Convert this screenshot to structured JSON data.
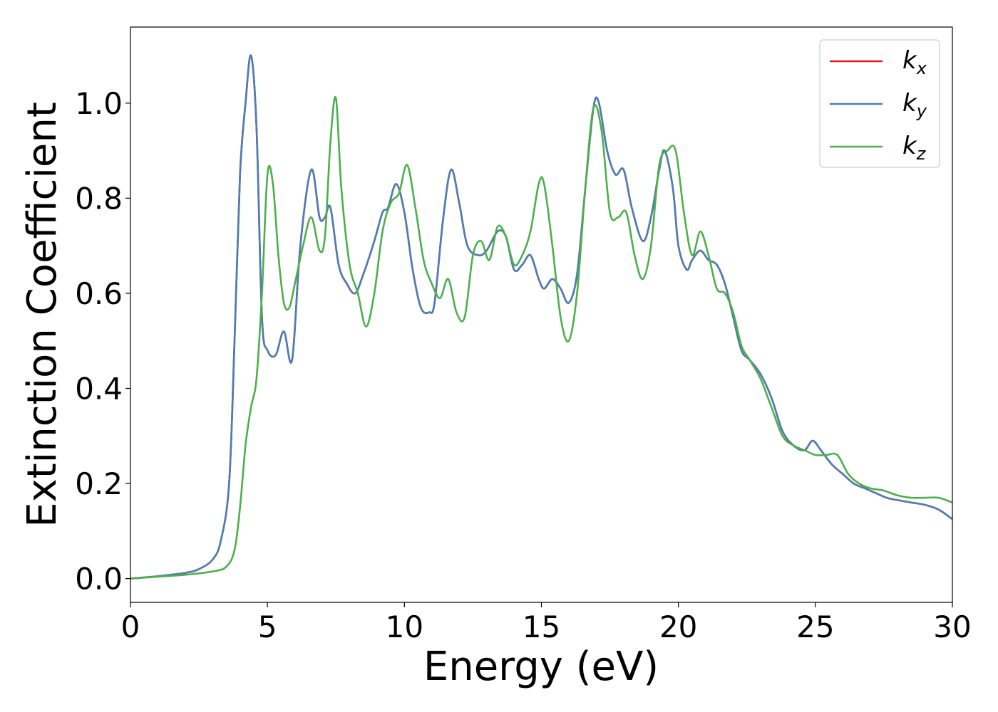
{
  "chart_data": {
    "type": "line",
    "title": "",
    "xlabel": "Energy (eV)",
    "ylabel": "Extinction Coefficient",
    "xlim": [
      0,
      30
    ],
    "ylim": [
      -0.05,
      1.16
    ],
    "x_ticks": [
      0,
      5,
      10,
      15,
      20,
      25,
      30
    ],
    "x_tick_labels": [
      "0",
      "5",
      "10",
      "15",
      "20",
      "25",
      "30"
    ],
    "y_ticks": [
      0.0,
      0.2,
      0.4,
      0.6,
      0.8,
      1.0
    ],
    "y_tick_labels": [
      "0.0",
      "0.2",
      "0.4",
      "0.6",
      "0.8",
      "1.0"
    ],
    "grid": false,
    "legend_position": "top-right",
    "series": [
      {
        "name": "k",
        "name_sub": "x",
        "color": "#e41a1c",
        "x": [
          0,
          1,
          2,
          2.5,
          3,
          3.3,
          3.6,
          3.8,
          4.0,
          4.2,
          4.4,
          4.6,
          4.8,
          5.0,
          5.3,
          5.6,
          5.9,
          6.2,
          6.6,
          6.9,
          7.1,
          7.3,
          7.6,
          7.9,
          8.2,
          8.5,
          8.9,
          9.2,
          9.4,
          9.7,
          10.0,
          10.3,
          10.6,
          10.9,
          11.1,
          11.4,
          11.7,
          12.0,
          12.3,
          12.7,
          13.0,
          13.4,
          13.7,
          14.0,
          14.3,
          14.6,
          14.9,
          15.1,
          15.4,
          15.7,
          16.0,
          16.3,
          16.6,
          16.9,
          17.1,
          17.4,
          17.7,
          18.0,
          18.3,
          18.7,
          19.0,
          19.3,
          19.5,
          19.8,
          20.0,
          20.3,
          20.5,
          20.8,
          21.1,
          21.4,
          21.7,
          22.0,
          22.3,
          22.6,
          23.0,
          23.4,
          23.8,
          24.2,
          24.6,
          24.9,
          25.2,
          25.6,
          26.0,
          26.4,
          26.8,
          27.2,
          27.6,
          28.0,
          28.5,
          29.0,
          29.5,
          30.0
        ],
        "y": [
          0.0,
          0.005,
          0.012,
          0.02,
          0.04,
          0.08,
          0.2,
          0.5,
          0.85,
          1.0,
          1.1,
          0.95,
          0.55,
          0.48,
          0.47,
          0.52,
          0.46,
          0.7,
          0.86,
          0.76,
          0.76,
          0.78,
          0.66,
          0.62,
          0.6,
          0.64,
          0.71,
          0.77,
          0.78,
          0.83,
          0.77,
          0.65,
          0.57,
          0.56,
          0.58,
          0.75,
          0.86,
          0.79,
          0.7,
          0.68,
          0.69,
          0.73,
          0.72,
          0.65,
          0.66,
          0.68,
          0.63,
          0.61,
          0.63,
          0.61,
          0.58,
          0.64,
          0.82,
          0.99,
          1.0,
          0.9,
          0.85,
          0.86,
          0.78,
          0.71,
          0.76,
          0.86,
          0.9,
          0.82,
          0.7,
          0.65,
          0.67,
          0.69,
          0.67,
          0.66,
          0.62,
          0.55,
          0.48,
          0.46,
          0.43,
          0.38,
          0.31,
          0.28,
          0.27,
          0.29,
          0.27,
          0.24,
          0.22,
          0.2,
          0.19,
          0.18,
          0.17,
          0.165,
          0.16,
          0.155,
          0.145,
          0.125
        ]
      },
      {
        "name": "k",
        "name_sub": "y",
        "color": "#4a7fb5",
        "x": [
          0,
          1,
          2,
          2.5,
          3,
          3.3,
          3.6,
          3.8,
          4.0,
          4.2,
          4.4,
          4.6,
          4.8,
          5.0,
          5.3,
          5.6,
          5.9,
          6.2,
          6.6,
          6.9,
          7.1,
          7.3,
          7.6,
          7.9,
          8.2,
          8.5,
          8.9,
          9.2,
          9.4,
          9.7,
          10.0,
          10.3,
          10.6,
          10.9,
          11.1,
          11.4,
          11.7,
          12.0,
          12.3,
          12.7,
          13.0,
          13.4,
          13.7,
          14.0,
          14.3,
          14.6,
          14.9,
          15.1,
          15.4,
          15.7,
          16.0,
          16.3,
          16.6,
          16.9,
          17.1,
          17.4,
          17.7,
          18.0,
          18.3,
          18.7,
          19.0,
          19.3,
          19.5,
          19.8,
          20.0,
          20.3,
          20.5,
          20.8,
          21.1,
          21.4,
          21.7,
          22.0,
          22.3,
          22.6,
          23.0,
          23.4,
          23.8,
          24.2,
          24.6,
          24.9,
          25.2,
          25.6,
          26.0,
          26.4,
          26.8,
          27.2,
          27.6,
          28.0,
          28.5,
          29.0,
          29.5,
          30.0
        ],
        "y": [
          0.0,
          0.005,
          0.012,
          0.02,
          0.04,
          0.08,
          0.2,
          0.5,
          0.85,
          1.0,
          1.1,
          0.95,
          0.55,
          0.48,
          0.47,
          0.52,
          0.46,
          0.7,
          0.86,
          0.76,
          0.76,
          0.78,
          0.66,
          0.62,
          0.6,
          0.64,
          0.71,
          0.77,
          0.78,
          0.83,
          0.77,
          0.65,
          0.57,
          0.56,
          0.58,
          0.75,
          0.86,
          0.79,
          0.7,
          0.68,
          0.69,
          0.73,
          0.72,
          0.65,
          0.66,
          0.68,
          0.63,
          0.61,
          0.63,
          0.61,
          0.58,
          0.64,
          0.82,
          0.99,
          1.0,
          0.9,
          0.85,
          0.86,
          0.78,
          0.71,
          0.76,
          0.86,
          0.9,
          0.82,
          0.7,
          0.65,
          0.67,
          0.69,
          0.67,
          0.66,
          0.62,
          0.55,
          0.48,
          0.46,
          0.43,
          0.38,
          0.31,
          0.28,
          0.27,
          0.29,
          0.27,
          0.24,
          0.22,
          0.2,
          0.19,
          0.18,
          0.17,
          0.165,
          0.16,
          0.155,
          0.145,
          0.125
        ]
      },
      {
        "name": "k",
        "name_sub": "z",
        "color": "#4daf4a",
        "x": [
          0,
          1,
          2,
          3,
          3.5,
          3.8,
          4.0,
          4.2,
          4.4,
          4.6,
          4.8,
          5.0,
          5.2,
          5.4,
          5.6,
          5.8,
          6.0,
          6.3,
          6.6,
          6.9,
          7.1,
          7.3,
          7.5,
          7.7,
          8.0,
          8.3,
          8.6,
          8.9,
          9.2,
          9.5,
          9.8,
          10.1,
          10.4,
          10.7,
          11.0,
          11.3,
          11.6,
          11.9,
          12.2,
          12.5,
          12.8,
          13.1,
          13.4,
          13.7,
          14.0,
          14.3,
          14.6,
          14.9,
          15.1,
          15.4,
          15.7,
          16.0,
          16.3,
          16.6,
          16.9,
          17.2,
          17.5,
          17.8,
          18.1,
          18.4,
          18.7,
          19.0,
          19.3,
          19.6,
          19.9,
          20.2,
          20.5,
          20.8,
          21.1,
          21.4,
          21.7,
          22.0,
          22.3,
          22.6,
          23.0,
          23.4,
          23.8,
          24.2,
          24.6,
          25.0,
          25.4,
          25.8,
          26.2,
          26.6,
          27.0,
          27.5,
          28.0,
          28.5,
          29.0,
          29.5,
          30.0
        ],
        "y": [
          0.0,
          0.004,
          0.008,
          0.015,
          0.025,
          0.06,
          0.15,
          0.28,
          0.36,
          0.42,
          0.6,
          0.85,
          0.83,
          0.68,
          0.58,
          0.57,
          0.62,
          0.7,
          0.76,
          0.69,
          0.72,
          0.92,
          1.01,
          0.82,
          0.66,
          0.6,
          0.53,
          0.6,
          0.73,
          0.79,
          0.81,
          0.87,
          0.78,
          0.67,
          0.62,
          0.59,
          0.63,
          0.56,
          0.55,
          0.68,
          0.71,
          0.67,
          0.74,
          0.72,
          0.66,
          0.68,
          0.73,
          0.83,
          0.83,
          0.7,
          0.55,
          0.5,
          0.6,
          0.82,
          0.99,
          0.94,
          0.77,
          0.76,
          0.77,
          0.68,
          0.63,
          0.7,
          0.87,
          0.9,
          0.9,
          0.77,
          0.68,
          0.73,
          0.68,
          0.61,
          0.6,
          0.56,
          0.49,
          0.46,
          0.42,
          0.36,
          0.3,
          0.28,
          0.27,
          0.26,
          0.26,
          0.26,
          0.22,
          0.2,
          0.19,
          0.185,
          0.175,
          0.17,
          0.17,
          0.17,
          0.16
        ]
      }
    ]
  }
}
